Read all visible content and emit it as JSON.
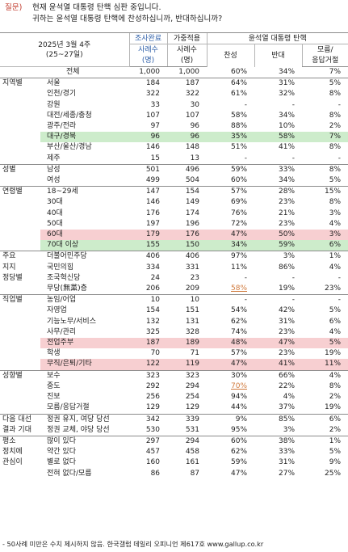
{
  "question": {
    "label": "질문)",
    "line1": "현재 윤석열 대통령 탄핵 심판 중입니다.",
    "line2": "귀하는 윤석열 대통령 탄핵에 찬성하십니까, 반대하십니까?"
  },
  "header": {
    "period": "2025년 3월 4주",
    "dates": "(25~27일)",
    "surveyed": "조사완료",
    "weighted": "가중적용",
    "topic": "윤석열 대통령 탄핵",
    "n1": "사례수",
    "n1u": "(명)",
    "n2": "사례수",
    "n2u": "(명)",
    "favor": "찬성",
    "oppose": "반대",
    "dk1": "모름/",
    "dk2": "응답거절"
  },
  "rows": [
    {
      "g": "",
      "c": "전체",
      "n1": "1,000",
      "n2": "1,000",
      "f": "60%",
      "o": "34%",
      "d": "7%"
    },
    {
      "g": "지역별",
      "c": "서울",
      "n1": "184",
      "n2": "187",
      "f": "64%",
      "o": "31%",
      "d": "5%"
    },
    {
      "g": "",
      "c": "인천/경기",
      "n1": "322",
      "n2": "322",
      "f": "61%",
      "o": "32%",
      "d": "8%"
    },
    {
      "g": "",
      "c": "강원",
      "n1": "33",
      "n2": "30",
      "f": "-",
      "o": "-",
      "d": "-"
    },
    {
      "g": "",
      "c": "대전/세종/충청",
      "n1": "107",
      "n2": "107",
      "f": "58%",
      "o": "34%",
      "d": "8%"
    },
    {
      "g": "",
      "c": "광주/전라",
      "n1": "97",
      "n2": "96",
      "f": "88%",
      "o": "10%",
      "d": "2%"
    },
    {
      "g": "",
      "c": "대구/경북",
      "n1": "96",
      "n2": "96",
      "f": "35%",
      "o": "58%",
      "d": "7%"
    },
    {
      "g": "",
      "c": "부산/울산/경남",
      "n1": "146",
      "n2": "148",
      "f": "51%",
      "o": "41%",
      "d": "8%"
    },
    {
      "g": "",
      "c": "제주",
      "n1": "15",
      "n2": "13",
      "f": "-",
      "o": "-",
      "d": "-"
    },
    {
      "g": "성별",
      "c": "남성",
      "n1": "501",
      "n2": "496",
      "f": "59%",
      "o": "33%",
      "d": "8%"
    },
    {
      "g": "",
      "c": "여성",
      "n1": "499",
      "n2": "504",
      "f": "60%",
      "o": "34%",
      "d": "5%"
    },
    {
      "g": "연령별",
      "c": "18~29세",
      "n1": "147",
      "n2": "154",
      "f": "57%",
      "o": "28%",
      "d": "15%"
    },
    {
      "g": "",
      "c": "30대",
      "n1": "146",
      "n2": "149",
      "f": "69%",
      "o": "23%",
      "d": "8%"
    },
    {
      "g": "",
      "c": "40대",
      "n1": "176",
      "n2": "174",
      "f": "76%",
      "o": "21%",
      "d": "3%"
    },
    {
      "g": "",
      "c": "50대",
      "n1": "197",
      "n2": "196",
      "f": "72%",
      "o": "23%",
      "d": "4%"
    },
    {
      "g": "",
      "c": "60대",
      "n1": "179",
      "n2": "176",
      "f": "47%",
      "o": "50%",
      "d": "3%"
    },
    {
      "g": "",
      "c": "70대 이상",
      "n1": "155",
      "n2": "150",
      "f": "34%",
      "o": "59%",
      "d": "6%"
    },
    {
      "g": "주요",
      "c": "더불어민주당",
      "n1": "406",
      "n2": "406",
      "f": "97%",
      "o": "3%",
      "d": "1%"
    },
    {
      "g": "지지",
      "c": "국민의힘",
      "n1": "334",
      "n2": "331",
      "f": "11%",
      "o": "86%",
      "d": "4%"
    },
    {
      "g": "정당별",
      "c": "조국혁신당",
      "n1": "24",
      "n2": "23",
      "f": "-",
      "o": "-",
      "d": "-"
    },
    {
      "g": "",
      "c": "무당(無黨)층",
      "n1": "206",
      "n2": "209",
      "f": "58%",
      "o": "19%",
      "d": "23%"
    },
    {
      "g": "직업별",
      "c": "농임/어업",
      "n1": "10",
      "n2": "10",
      "f": "-",
      "o": "-",
      "d": "-"
    },
    {
      "g": "",
      "c": "자영업",
      "n1": "154",
      "n2": "151",
      "f": "54%",
      "o": "42%",
      "d": "5%"
    },
    {
      "g": "",
      "c": "기능노무/서비스",
      "n1": "132",
      "n2": "131",
      "f": "62%",
      "o": "31%",
      "d": "6%"
    },
    {
      "g": "",
      "c": "사무/관리",
      "n1": "325",
      "n2": "328",
      "f": "74%",
      "o": "23%",
      "d": "4%"
    },
    {
      "g": "",
      "c": "전업주부",
      "n1": "187",
      "n2": "189",
      "f": "48%",
      "o": "47%",
      "d": "5%"
    },
    {
      "g": "",
      "c": "학생",
      "n1": "70",
      "n2": "71",
      "f": "57%",
      "o": "23%",
      "d": "19%"
    },
    {
      "g": "",
      "c": "무직/은퇴/기타",
      "n1": "122",
      "n2": "119",
      "f": "47%",
      "o": "41%",
      "d": "11%"
    },
    {
      "g": "성향별",
      "c": "보수",
      "n1": "323",
      "n2": "323",
      "f": "30%",
      "o": "66%",
      "d": "4%"
    },
    {
      "g": "",
      "c": "중도",
      "n1": "292",
      "n2": "294",
      "f": "70%",
      "o": "22%",
      "d": "8%"
    },
    {
      "g": "",
      "c": "진보",
      "n1": "256",
      "n2": "254",
      "f": "94%",
      "o": "4%",
      "d": "2%"
    },
    {
      "g": "",
      "c": "모름/응답거절",
      "n1": "129",
      "n2": "129",
      "f": "44%",
      "o": "37%",
      "d": "19%"
    },
    {
      "g": "다음 대선",
      "c": "정권 유지, 여당 당선",
      "n1": "342",
      "n2": "339",
      "f": "9%",
      "o": "85%",
      "d": "6%"
    },
    {
      "g": "결과 기대",
      "c": "정권 교체, 야당 당선",
      "n1": "530",
      "n2": "531",
      "f": "95%",
      "o": "3%",
      "d": "2%"
    },
    {
      "g": "평소",
      "c": "많이 있다",
      "n1": "297",
      "n2": "294",
      "f": "60%",
      "o": "38%",
      "d": "1%"
    },
    {
      "g": "정치에",
      "c": "약간 있다",
      "n1": "457",
      "n2": "458",
      "f": "62%",
      "o": "33%",
      "d": "5%"
    },
    {
      "g": "관심이",
      "c": "별로 없다",
      "n1": "160",
      "n2": "161",
      "f": "59%",
      "o": "31%",
      "d": "9%"
    },
    {
      "g": "",
      "c": "전혀 없다/모름",
      "n1": "86",
      "n2": "87",
      "f": "47%",
      "o": "27%",
      "d": "25%"
    }
  ],
  "footnote": "- 50사례 미만은 수치 제시하지 않음. 한국갤럽 데일리 오피니언 제617호 www.gallup.co.kr",
  "colors": {
    "highlight_green": "#cdeccb",
    "highlight_pink": "#f7cfd1",
    "header_blue": "#2e5fa8",
    "question_label": "#c0392b"
  }
}
